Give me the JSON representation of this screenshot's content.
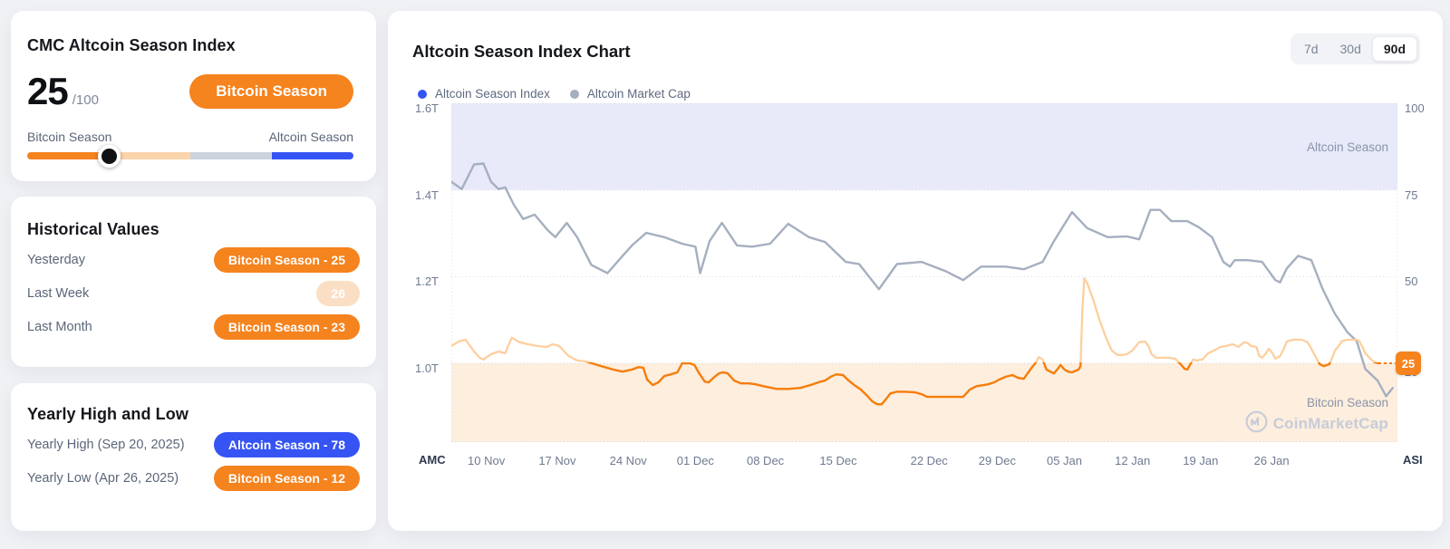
{
  "colors": {
    "orange": "#f5831e",
    "blue": "#3654f3",
    "peach_badge": "#fbdfc4",
    "amc_line": "#a5afc0",
    "asi_line_low": "#f67d0a",
    "asi_line_high": "#fdcf9e",
    "altcoin_band": "#e8eafa",
    "bitcoin_band": "#fdeede"
  },
  "season_card": {
    "title": "CMC Altcoin Season Index",
    "score": "25",
    "score_suffix": "/100",
    "season_badge": "Bitcoin Season",
    "scale_left_label": "Bitcoin Season",
    "scale_right_label": "Altcoin Season",
    "slider_position_pct": 25
  },
  "historical_card": {
    "title": "Historical Values",
    "rows": [
      {
        "label": "Yesterday",
        "badge_text": "Bitcoin Season - 25",
        "badge_style": "orange"
      },
      {
        "label": "Last Week",
        "badge_text": "26",
        "badge_style": "peach"
      },
      {
        "label": "Last Month",
        "badge_text": "Bitcoin Season - 23",
        "badge_style": "orange"
      }
    ]
  },
  "yearly_card": {
    "title": "Yearly High and Low",
    "rows": [
      {
        "label": "Yearly High (Sep 20, 2025)",
        "badge_text": "Altcoin Season - 78",
        "badge_style": "blue"
      },
      {
        "label": "Yearly Low (Apr 26, 2025)",
        "badge_text": "Bitcoin Season - 12",
        "badge_style": "orange"
      }
    ]
  },
  "chart_card": {
    "title": "Altcoin Season Index Chart",
    "legend": [
      {
        "label": "Altcoin Season Index",
        "color": "#3654f3"
      },
      {
        "label": "Altcoin Market Cap",
        "color": "#a5afc0"
      }
    ],
    "range_buttons": [
      {
        "label": "7d",
        "active": false
      },
      {
        "label": "30d",
        "active": false
      },
      {
        "label": "90d",
        "active": true
      }
    ],
    "corner_label_left": "AMC",
    "corner_label_right": "ASI",
    "zone_label_top": "Altcoin Season",
    "zone_label_bottom": "Bitcoin Season",
    "watermark_text": "CoinMarketCap",
    "current_value": "25"
  },
  "chart_data": {
    "type": "line",
    "title": "Altcoin Season Index Chart",
    "x_ticks": [
      {
        "label": "10 Nov",
        "f": 0.037
      },
      {
        "label": "17 Nov",
        "f": 0.112
      },
      {
        "label": "24 Nov",
        "f": 0.187
      },
      {
        "label": "01 Dec",
        "f": 0.258
      },
      {
        "label": "08 Dec",
        "f": 0.332
      },
      {
        "label": "15 Dec",
        "f": 0.409
      },
      {
        "label": "22 Dec",
        "f": 0.505
      },
      {
        "label": "29 Dec",
        "f": 0.577
      },
      {
        "label": "05 Jan",
        "f": 0.648
      },
      {
        "label": "12 Jan",
        "f": 0.72
      },
      {
        "label": "19 Jan",
        "f": 0.792
      },
      {
        "label": "26 Jan",
        "f": 0.867
      }
    ],
    "y_left": {
      "name": "AMC",
      "unit": "T",
      "ticks": [
        "1.6T",
        "1.4T",
        "1.2T",
        "1.0T"
      ]
    },
    "y_right": {
      "name": "ASI",
      "ticks": [
        "100",
        "75",
        "50",
        "25"
      ],
      "range": [
        0,
        100
      ]
    },
    "grid": true,
    "zones": [
      {
        "label": "Altcoin Season",
        "axis": "right",
        "from": 75,
        "to": 100,
        "color": "#e8eafa"
      },
      {
        "label": "Bitcoin Season",
        "axis": "right",
        "from": 0,
        "to": 25,
        "color": "#fdeede"
      }
    ],
    "series": [
      {
        "name": "Altcoin Market Cap",
        "axis": "left",
        "unit": "T",
        "color": "#a5afc0",
        "points": [
          [
            0.0,
            1.419
          ],
          [
            0.011,
            1.402
          ],
          [
            0.024,
            1.459
          ],
          [
            0.034,
            1.461
          ],
          [
            0.042,
            1.419
          ],
          [
            0.05,
            1.402
          ],
          [
            0.057,
            1.406
          ],
          [
            0.066,
            1.366
          ],
          [
            0.076,
            1.333
          ],
          [
            0.088,
            1.343
          ],
          [
            0.102,
            1.307
          ],
          [
            0.11,
            1.291
          ],
          [
            0.122,
            1.324
          ],
          [
            0.133,
            1.291
          ],
          [
            0.148,
            1.227
          ],
          [
            0.165,
            1.208
          ],
          [
            0.181,
            1.248
          ],
          [
            0.191,
            1.272
          ],
          [
            0.206,
            1.301
          ],
          [
            0.225,
            1.291
          ],
          [
            0.244,
            1.276
          ],
          [
            0.258,
            1.269
          ],
          [
            0.263,
            1.208
          ],
          [
            0.273,
            1.282
          ],
          [
            0.286,
            1.324
          ],
          [
            0.302,
            1.272
          ],
          [
            0.318,
            1.269
          ],
          [
            0.337,
            1.276
          ],
          [
            0.356,
            1.322
          ],
          [
            0.378,
            1.291
          ],
          [
            0.395,
            1.28
          ],
          [
            0.417,
            1.234
          ],
          [
            0.431,
            1.229
          ],
          [
            0.452,
            1.171
          ],
          [
            0.471,
            1.229
          ],
          [
            0.497,
            1.234
          ],
          [
            0.522,
            1.213
          ],
          [
            0.541,
            1.192
          ],
          [
            0.56,
            1.223
          ],
          [
            0.586,
            1.223
          ],
          [
            0.605,
            1.217
          ],
          [
            0.625,
            1.234
          ],
          [
            0.637,
            1.282
          ],
          [
            0.656,
            1.349
          ],
          [
            0.672,
            1.312
          ],
          [
            0.694,
            1.291
          ],
          [
            0.714,
            1.293
          ],
          [
            0.727,
            1.286
          ],
          [
            0.739,
            1.354
          ],
          [
            0.749,
            1.354
          ],
          [
            0.761,
            1.328
          ],
          [
            0.778,
            1.328
          ],
          [
            0.79,
            1.314
          ],
          [
            0.804,
            1.291
          ],
          [
            0.816,
            1.234
          ],
          [
            0.823,
            1.223
          ],
          [
            0.828,
            1.238
          ],
          [
            0.842,
            1.238
          ],
          [
            0.857,
            1.234
          ],
          [
            0.871,
            1.192
          ],
          [
            0.876,
            1.187
          ],
          [
            0.883,
            1.219
          ],
          [
            0.895,
            1.248
          ],
          [
            0.909,
            1.238
          ],
          [
            0.921,
            1.171
          ],
          [
            0.934,
            1.114
          ],
          [
            0.947,
            1.072
          ],
          [
            0.957,
            1.051
          ],
          [
            0.966,
            0.987
          ],
          [
            0.979,
            0.96
          ],
          [
            0.988,
            0.924
          ],
          [
            0.995,
            0.943
          ]
        ]
      },
      {
        "name": "Altcoin Season Index",
        "axis": "right",
        "threshold": 25,
        "color_below": "#f67d0a",
        "color_above": "#fdcf9e",
        "current_value": 25,
        "points": [
          [
            0.0,
            30.0
          ],
          [
            0.008,
            31.3
          ],
          [
            0.015,
            31.8
          ],
          [
            0.024,
            28.4
          ],
          [
            0.03,
            26.6
          ],
          [
            0.034,
            26.1
          ],
          [
            0.042,
            27.6
          ],
          [
            0.05,
            28.4
          ],
          [
            0.057,
            27.9
          ],
          [
            0.06,
            30.0
          ],
          [
            0.064,
            32.4
          ],
          [
            0.072,
            31.1
          ],
          [
            0.081,
            30.5
          ],
          [
            0.091,
            30.0
          ],
          [
            0.101,
            29.7
          ],
          [
            0.107,
            30.5
          ],
          [
            0.114,
            30.0
          ],
          [
            0.124,
            27.1
          ],
          [
            0.133,
            25.8
          ],
          [
            0.143,
            25.5
          ],
          [
            0.152,
            24.7
          ],
          [
            0.162,
            23.9
          ],
          [
            0.171,
            23.2
          ],
          [
            0.181,
            22.6
          ],
          [
            0.191,
            23.2
          ],
          [
            0.198,
            23.9
          ],
          [
            0.203,
            23.7
          ],
          [
            0.207,
            20.3
          ],
          [
            0.213,
            18.7
          ],
          [
            0.219,
            19.5
          ],
          [
            0.225,
            21.3
          ],
          [
            0.232,
            21.8
          ],
          [
            0.239,
            22.4
          ],
          [
            0.244,
            25.0
          ],
          [
            0.252,
            25.0
          ],
          [
            0.257,
            24.5
          ],
          [
            0.262,
            22.1
          ],
          [
            0.268,
            19.7
          ],
          [
            0.272,
            19.5
          ],
          [
            0.277,
            20.8
          ],
          [
            0.283,
            22.1
          ],
          [
            0.287,
            22.4
          ],
          [
            0.292,
            22.1
          ],
          [
            0.299,
            20.0
          ],
          [
            0.306,
            19.2
          ],
          [
            0.315,
            19.2
          ],
          [
            0.322,
            18.9
          ],
          [
            0.33,
            18.4
          ],
          [
            0.344,
            17.6
          ],
          [
            0.356,
            17.6
          ],
          [
            0.369,
            17.9
          ],
          [
            0.382,
            18.9
          ],
          [
            0.39,
            19.7
          ],
          [
            0.395,
            20.0
          ],
          [
            0.401,
            21.1
          ],
          [
            0.407,
            21.8
          ],
          [
            0.414,
            21.6
          ],
          [
            0.42,
            20.0
          ],
          [
            0.426,
            18.7
          ],
          [
            0.433,
            17.4
          ],
          [
            0.44,
            15.5
          ],
          [
            0.445,
            14.0
          ],
          [
            0.45,
            13.2
          ],
          [
            0.455,
            13.2
          ],
          [
            0.459,
            14.5
          ],
          [
            0.464,
            16.3
          ],
          [
            0.471,
            16.8
          ],
          [
            0.48,
            16.8
          ],
          [
            0.49,
            16.6
          ],
          [
            0.497,
            16.1
          ],
          [
            0.503,
            15.3
          ],
          [
            0.516,
            15.3
          ],
          [
            0.53,
            15.3
          ],
          [
            0.541,
            15.3
          ],
          [
            0.548,
            17.4
          ],
          [
            0.555,
            18.4
          ],
          [
            0.567,
            18.9
          ],
          [
            0.574,
            19.5
          ],
          [
            0.579,
            20.3
          ],
          [
            0.586,
            21.1
          ],
          [
            0.593,
            21.6
          ],
          [
            0.599,
            20.8
          ],
          [
            0.605,
            20.5
          ],
          [
            0.612,
            23.2
          ],
          [
            0.618,
            25.3
          ],
          [
            0.621,
            26.8
          ],
          [
            0.625,
            26.1
          ],
          [
            0.629,
            23.2
          ],
          [
            0.633,
            22.6
          ],
          [
            0.637,
            22.1
          ],
          [
            0.641,
            23.4
          ],
          [
            0.644,
            24.5
          ],
          [
            0.648,
            23.2
          ],
          [
            0.652,
            22.6
          ],
          [
            0.656,
            22.4
          ],
          [
            0.663,
            23.2
          ],
          [
            0.665,
            24.2
          ],
          [
            0.667,
            40.0
          ],
          [
            0.669,
            49.5
          ],
          [
            0.672,
            48.2
          ],
          [
            0.679,
            42.9
          ],
          [
            0.685,
            37.6
          ],
          [
            0.692,
            32.4
          ],
          [
            0.698,
            28.7
          ],
          [
            0.704,
            27.4
          ],
          [
            0.71,
            27.4
          ],
          [
            0.714,
            27.6
          ],
          [
            0.72,
            28.7
          ],
          [
            0.727,
            31.1
          ],
          [
            0.733,
            31.3
          ],
          [
            0.737,
            30.0
          ],
          [
            0.74,
            27.6
          ],
          [
            0.745,
            26.6
          ],
          [
            0.752,
            26.6
          ],
          [
            0.759,
            26.6
          ],
          [
            0.765,
            26.3
          ],
          [
            0.771,
            24.7
          ],
          [
            0.775,
            23.4
          ],
          [
            0.778,
            23.2
          ],
          [
            0.781,
            24.7
          ],
          [
            0.784,
            26.1
          ],
          [
            0.788,
            25.8
          ],
          [
            0.794,
            26.1
          ],
          [
            0.8,
            27.9
          ],
          [
            0.806,
            28.7
          ],
          [
            0.813,
            29.7
          ],
          [
            0.819,
            30.0
          ],
          [
            0.826,
            30.5
          ],
          [
            0.832,
            29.7
          ],
          [
            0.838,
            31.1
          ],
          [
            0.842,
            30.8
          ],
          [
            0.845,
            30.0
          ],
          [
            0.851,
            29.7
          ],
          [
            0.854,
            27.1
          ],
          [
            0.857,
            26.6
          ],
          [
            0.861,
            27.9
          ],
          [
            0.864,
            29.2
          ],
          [
            0.868,
            27.9
          ],
          [
            0.871,
            26.3
          ],
          [
            0.876,
            27.1
          ],
          [
            0.88,
            29.2
          ],
          [
            0.883,
            31.3
          ],
          [
            0.89,
            31.8
          ],
          [
            0.899,
            31.8
          ],
          [
            0.905,
            31.1
          ],
          [
            0.909,
            29.2
          ],
          [
            0.915,
            26.1
          ],
          [
            0.918,
            24.7
          ],
          [
            0.922,
            24.2
          ],
          [
            0.928,
            24.7
          ],
          [
            0.931,
            26.6
          ],
          [
            0.934,
            28.7
          ],
          [
            0.938,
            30.0
          ],
          [
            0.941,
            31.3
          ],
          [
            0.947,
            31.8
          ],
          [
            0.957,
            31.8
          ],
          [
            0.96,
            31.3
          ],
          [
            0.963,
            29.7
          ],
          [
            0.966,
            27.9
          ],
          [
            0.972,
            26.1
          ],
          [
            0.976,
            25.3
          ],
          [
            0.98,
            25.0
          ]
        ]
      }
    ]
  }
}
